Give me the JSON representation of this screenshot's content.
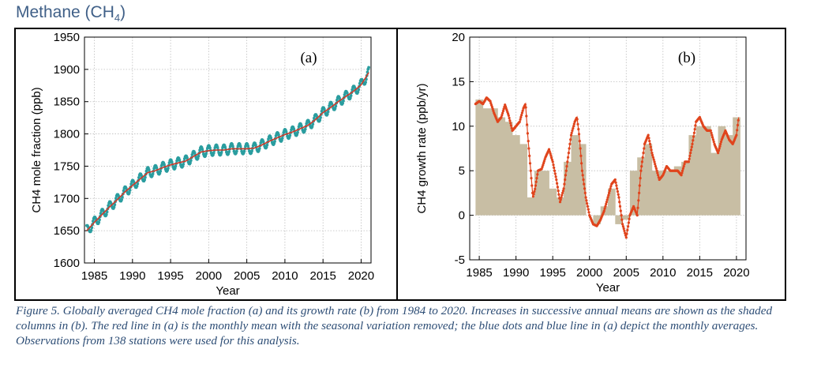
{
  "heading": {
    "text": "Methane (CH",
    "sub": "4",
    "close": ")"
  },
  "caption": "Figure 5. Globally averaged CH4 mole fraction (a) and its growth rate (b) from 1984 to 2020. Increases in successive annual means are shown as the shaded columns in (b). The red line in (a) is the monthly mean with the seasonal variation removed; the blue dots and blue line in (a) depict the monthly averages. Observations from 138 stations were used for this analysis.",
  "colors": {
    "heading": "#3f5f87",
    "caption": "#2e4e76",
    "monthly_avg": "#2a9d9f",
    "trend": "#d03a2a",
    "growth": "#e0441c",
    "columns": "#c8bea4"
  },
  "chart_data": [
    {
      "type": "line",
      "panel_label": "(a)",
      "xlabel": "Year",
      "ylabel": "CH4 mole fraction (ppb)",
      "xlim": [
        1983.7,
        2021.3
      ],
      "ylim": [
        1600,
        1950
      ],
      "xticks": [
        1985,
        1990,
        1995,
        2000,
        2005,
        2010,
        2015,
        2020
      ],
      "yticks": [
        1600,
        1650,
        1700,
        1750,
        1800,
        1850,
        1900,
        1950
      ],
      "grid": true,
      "seasonal_amplitude_ppb": 8,
      "series": [
        {
          "role": "monthly averages (blue dots and line)",
          "marker": "dot"
        },
        {
          "role": "deseasonalized monthly mean (red line)",
          "x": [
            1984,
            1985,
            1986,
            1987,
            1988,
            1989,
            1990,
            1991,
            1992,
            1993,
            1994,
            1995,
            1996,
            1997,
            1998,
            1999,
            2000,
            2001,
            2002,
            2003,
            2004,
            2005,
            2006,
            2007,
            2008,
            2009,
            2010,
            2011,
            2012,
            2013,
            2014,
            2015,
            2016,
            2017,
            2018,
            2019,
            2020,
            2021
          ],
          "y": [
            1650,
            1663,
            1675,
            1687,
            1698,
            1710,
            1720,
            1730,
            1740,
            1743,
            1748,
            1752,
            1755,
            1758,
            1765,
            1772,
            1774,
            1775,
            1775,
            1777,
            1777,
            1777,
            1778,
            1783,
            1789,
            1794,
            1799,
            1803,
            1808,
            1813,
            1822,
            1833,
            1841,
            1850,
            1858,
            1866,
            1876,
            1895
          ]
        }
      ]
    },
    {
      "type": "bar",
      "panel_label": "(b)",
      "xlabel": "Year",
      "ylabel": "CH4 growth rate (ppb/yr)",
      "xlim": [
        1983.7,
        2021.3
      ],
      "ylim": [
        -5,
        20
      ],
      "xticks": [
        1985,
        1990,
        1995,
        2000,
        2005,
        2010,
        2015,
        2020
      ],
      "yticks": [
        -5,
        0,
        5,
        10,
        15,
        20
      ],
      "grid": true,
      "series": [
        {
          "role": "annual increase (shaded columns)",
          "years": [
            1985,
            1986,
            1987,
            1988,
            1989,
            1990,
            1991,
            1992,
            1993,
            1994,
            1995,
            1996,
            1997,
            1998,
            1999,
            2000,
            2001,
            2002,
            2003,
            2004,
            2005,
            2006,
            2007,
            2008,
            2009,
            2010,
            2011,
            2012,
            2013,
            2014,
            2015,
            2016,
            2017,
            2018,
            2019,
            2020
          ],
          "values": [
            13,
            12,
            12,
            11,
            10.5,
            9,
            8,
            2,
            5,
            5,
            3,
            2,
            6,
            9,
            8,
            0,
            -1,
            1,
            3,
            -1,
            -0.5,
            5,
            6.5,
            8,
            5,
            5,
            5,
            5.5,
            6,
            9,
            10,
            10,
            7,
            10,
            9,
            11
          ]
        },
        {
          "role": "growth rate (red dotted line)",
          "x": [
            1984.5,
            1985,
            1985.5,
            1986,
            1986.5,
            1987,
            1987.5,
            1988,
            1988.5,
            1989,
            1989.5,
            1990,
            1990.5,
            1991,
            1991.3,
            1991.6,
            1992,
            1992.3,
            1992.6,
            1993,
            1993.5,
            1994,
            1994.5,
            1995,
            1995.5,
            1996,
            1996.5,
            1997,
            1997.5,
            1998,
            1998.3,
            1998.6,
            1999,
            1999.5,
            2000,
            2000.5,
            2001,
            2001.5,
            2002,
            2002.5,
            2003,
            2003.5,
            2004,
            2004.5,
            2005,
            2005.5,
            2006,
            2006.5,
            2007,
            2007.5,
            2008,
            2008.5,
            2009,
            2009.5,
            2010,
            2010.5,
            2011,
            2011.5,
            2012,
            2012.5,
            2013,
            2013.5,
            2014,
            2014.5,
            2015,
            2015.5,
            2016,
            2016.5,
            2017,
            2017.5,
            2018,
            2018.5,
            2019,
            2019.5,
            2020,
            2020.3
          ],
          "y": [
            12.5,
            12.8,
            12.5,
            13.2,
            12.8,
            11.5,
            10.5,
            11.0,
            12.4,
            11.2,
            9.5,
            10.0,
            10.5,
            12.0,
            12.5,
            9.0,
            5.0,
            2.0,
            3.0,
            5.0,
            5.2,
            6.5,
            7.4,
            6.0,
            4.0,
            1.5,
            3.0,
            6.0,
            9.0,
            10.5,
            11.0,
            9.0,
            5.0,
            2.0,
            0.0,
            -1.0,
            -1.2,
            -0.5,
            0.5,
            2.0,
            3.5,
            4.0,
            2.0,
            -1.0,
            -2.5,
            0.0,
            1.0,
            0.0,
            5.0,
            8.0,
            9.0,
            7.0,
            5.5,
            4.0,
            4.5,
            5.5,
            5.0,
            5.0,
            5.0,
            4.5,
            6.0,
            6.0,
            8.0,
            10.5,
            11.0,
            10.0,
            9.5,
            9.5,
            8.0,
            7.0,
            8.5,
            9.5,
            8.5,
            8.0,
            9.0,
            11.0
          ]
        }
      ]
    }
  ]
}
